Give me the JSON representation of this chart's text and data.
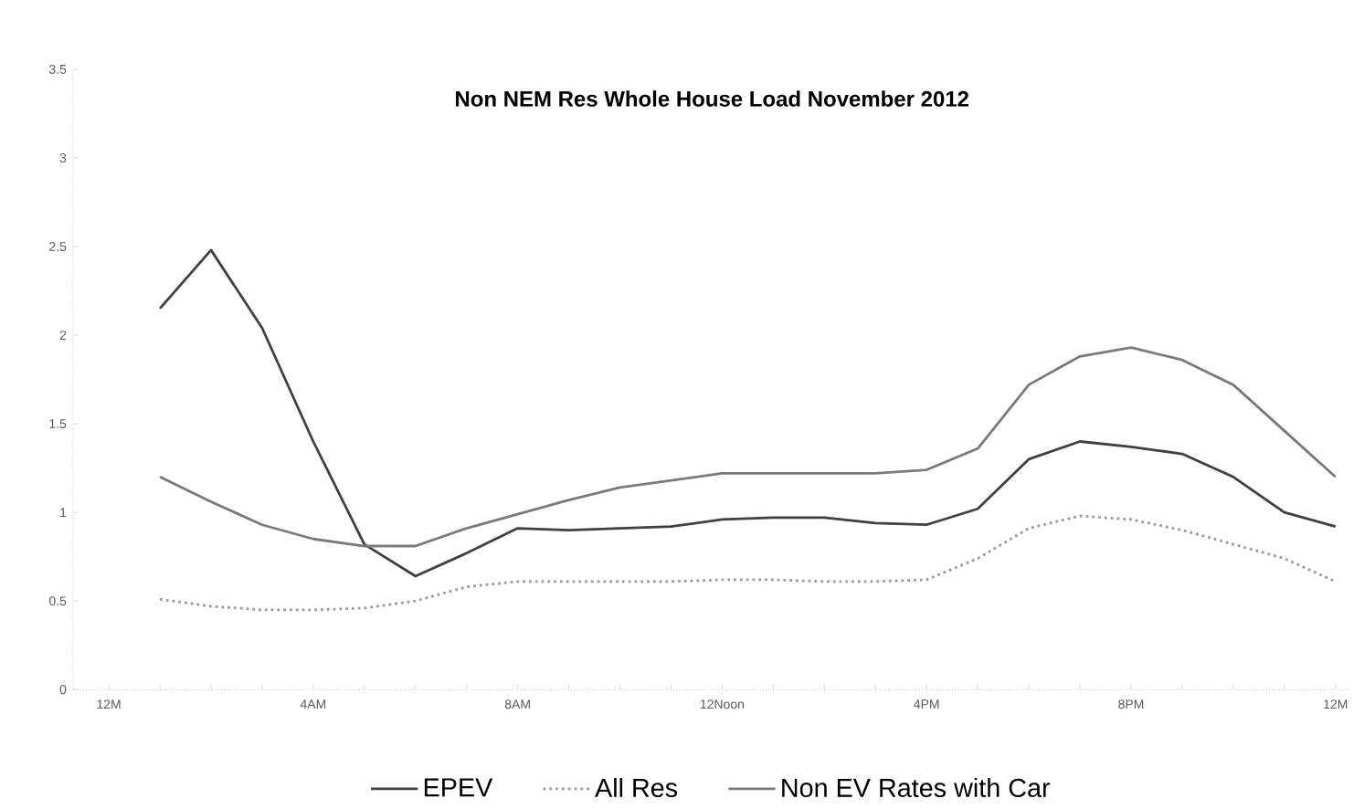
{
  "chart_data": {
    "type": "line",
    "title": "Non NEM Res Whole House Load November 2012",
    "categories": [
      "12M",
      null,
      null,
      null,
      "4AM",
      null,
      null,
      null,
      "8AM",
      null,
      null,
      null,
      "12Noon",
      null,
      null,
      null,
      "4PM",
      null,
      null,
      null,
      "8PM",
      null,
      null,
      null,
      "12M"
    ],
    "series": [
      {
        "name": "EPEV",
        "color": "#404040",
        "line_style": "solid",
        "values": [
          null,
          2.15,
          2.48,
          2.04,
          1.4,
          0.82,
          0.64,
          0.77,
          0.91,
          0.9,
          0.91,
          0.92,
          0.96,
          0.97,
          0.97,
          0.94,
          0.93,
          1.02,
          1.3,
          1.4,
          1.37,
          1.33,
          1.2,
          1.0,
          0.92
        ]
      },
      {
        "name": "All Res",
        "color": "#9a9a9a",
        "line_style": "dotted",
        "values": [
          null,
          0.51,
          0.47,
          0.45,
          0.45,
          0.46,
          0.5,
          0.58,
          0.61,
          0.61,
          0.61,
          0.61,
          0.62,
          0.62,
          0.61,
          0.61,
          0.62,
          0.74,
          0.91,
          0.98,
          0.96,
          0.9,
          0.82,
          0.74,
          0.61
        ]
      },
      {
        "name": "Non EV Rates with Car",
        "color": "#7a7a7a",
        "line_style": "solid",
        "values": [
          null,
          1.2,
          1.06,
          0.93,
          0.85,
          0.81,
          0.81,
          0.91,
          0.99,
          1.07,
          1.14,
          1.18,
          1.22,
          1.22,
          1.22,
          1.22,
          1.24,
          1.36,
          1.72,
          1.88,
          1.93,
          1.86,
          1.72,
          1.46,
          1.2
        ]
      }
    ],
    "ylim": [
      0,
      3.5
    ],
    "yticks": [
      0,
      0.5,
      1,
      1.5,
      2,
      2.5,
      3,
      3.5
    ],
    "grid": false,
    "legend": "bottom",
    "marker": "none"
  }
}
